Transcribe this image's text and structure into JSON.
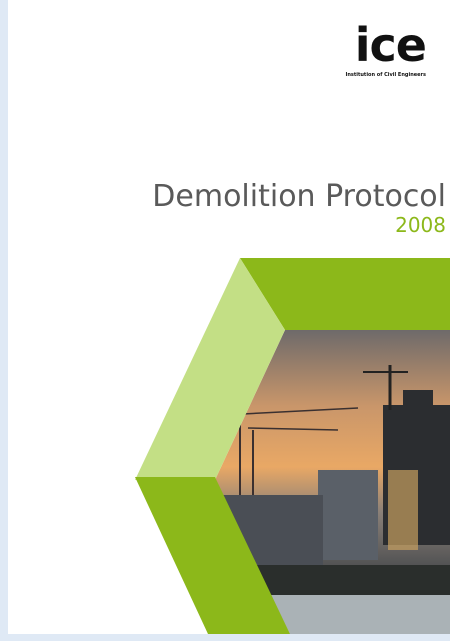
{
  "logo": {
    "mark": "ice",
    "org": "Institution of Civil Engineers"
  },
  "title": "Demolition Protocol",
  "year": "2008"
}
